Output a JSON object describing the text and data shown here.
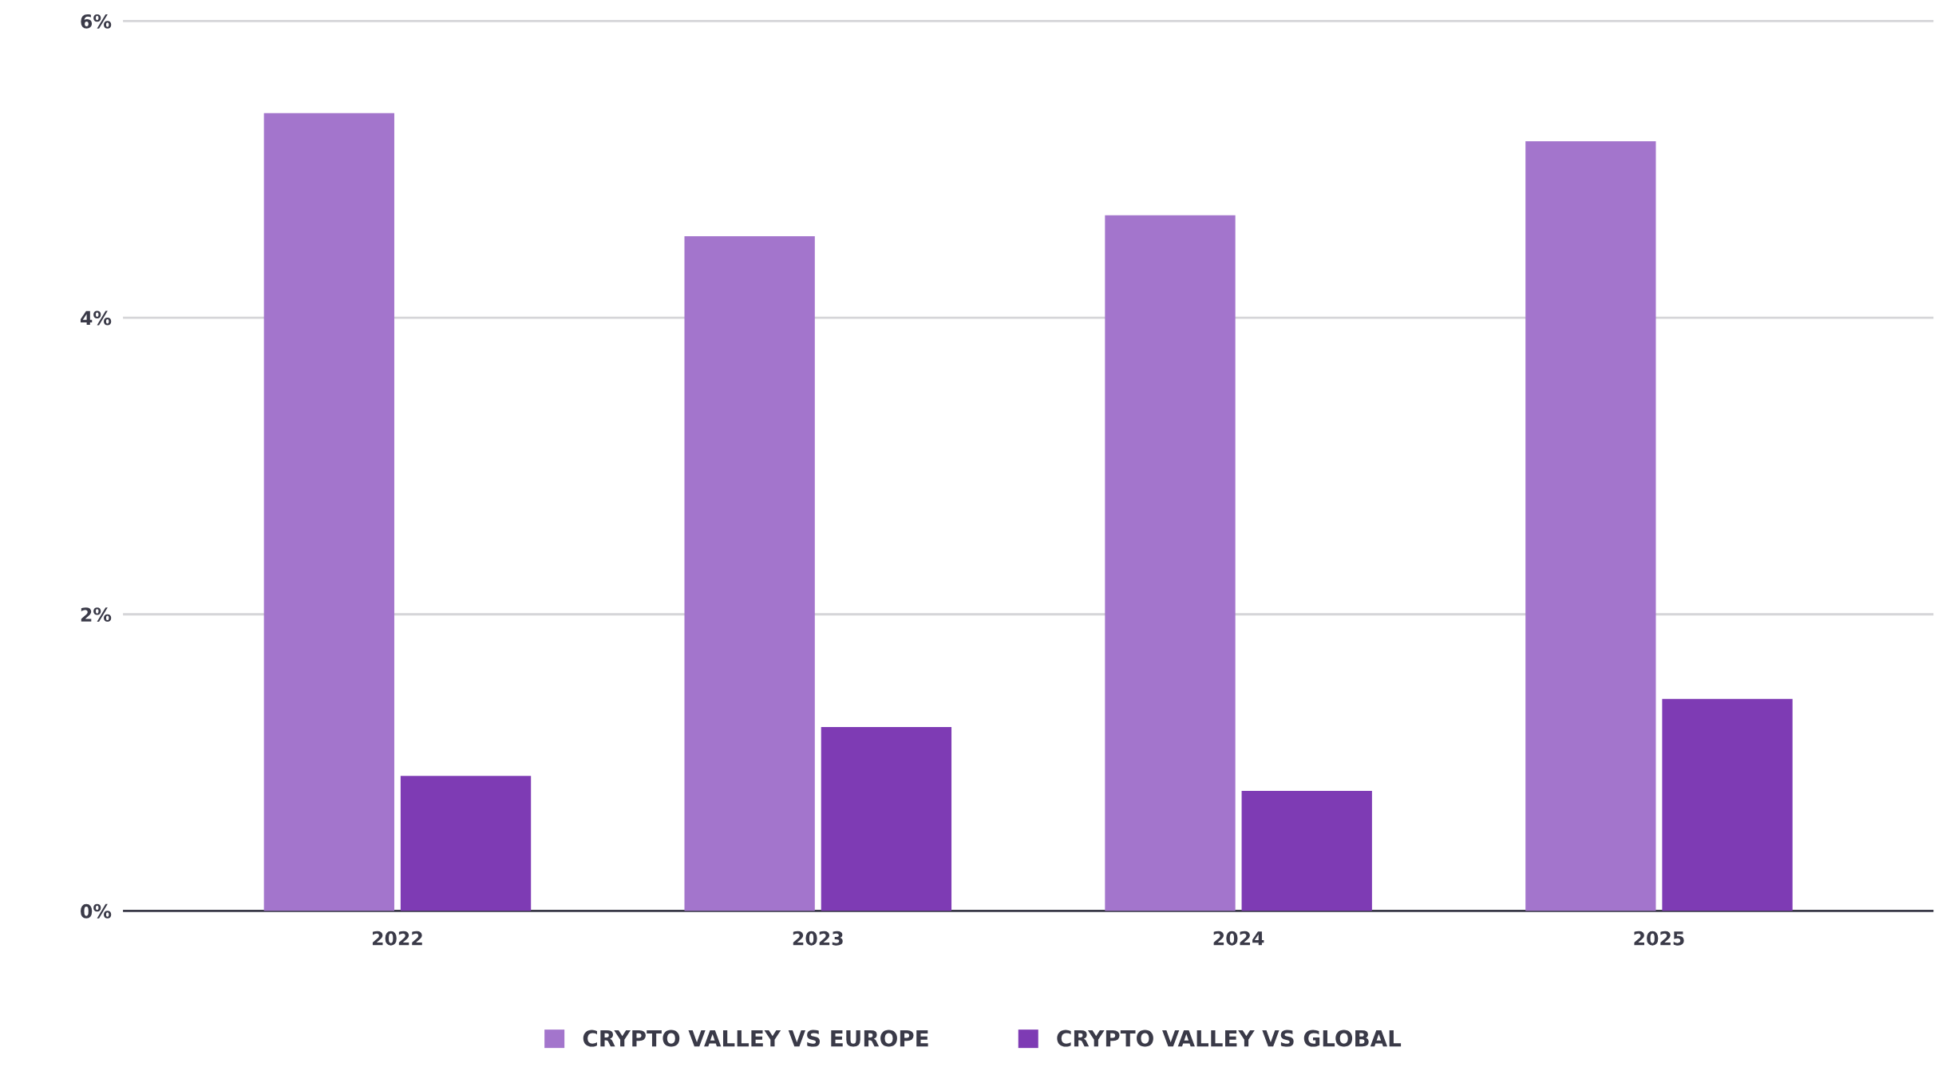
{
  "chart_data": {
    "type": "bar",
    "categories": [
      "2022",
      "2023",
      "2024",
      "2025"
    ],
    "series": [
      {
        "name": "CRYPTO VALLEY VS EUROPE",
        "color": "#a375cc",
        "values": [
          5.38,
          4.55,
          4.69,
          5.19
        ]
      },
      {
        "name": "CRYPTO VALLEY VS GLOBAL",
        "color": "#7e3bb4",
        "values": [
          0.91,
          1.24,
          0.81,
          1.43
        ]
      }
    ],
    "ylim": [
      0,
      6
    ],
    "yticks": [
      {
        "value": 0,
        "label": "0%"
      },
      {
        "value": 2,
        "label": "2%"
      },
      {
        "value": 4,
        "label": "4%"
      },
      {
        "value": 6,
        "label": "6%"
      }
    ],
    "grid": "y",
    "legend": "bottom"
  }
}
